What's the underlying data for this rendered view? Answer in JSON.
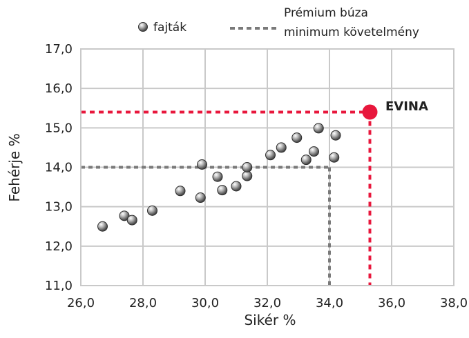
{
  "chart_data": {
    "type": "scatter",
    "xlabel": "Sikér %",
    "ylabel": "Fehérje %",
    "xlim": [
      26,
      38
    ],
    "ylim": [
      11,
      17
    ],
    "x_ticks": [
      "26,0",
      "28,0",
      "30,0",
      "32,0",
      "34,0",
      "36,0",
      "38,0"
    ],
    "y_ticks": [
      "11,0",
      "12,0",
      "13,0",
      "14,0",
      "15,0",
      "16,0",
      "17,0"
    ],
    "grid": true,
    "legend_position": "top",
    "series": [
      {
        "name": "fajták",
        "color": "#6e6e6e",
        "points": [
          [
            26.7,
            12.5
          ],
          [
            27.4,
            12.77
          ],
          [
            27.65,
            12.66
          ],
          [
            28.3,
            12.9
          ],
          [
            29.2,
            13.4
          ],
          [
            29.85,
            13.23
          ],
          [
            29.9,
            14.07
          ],
          [
            30.4,
            13.76
          ],
          [
            30.55,
            13.42
          ],
          [
            31.0,
            13.52
          ],
          [
            31.35,
            13.78
          ],
          [
            31.35,
            14.0
          ],
          [
            32.1,
            14.31
          ],
          [
            32.45,
            14.5
          ],
          [
            32.95,
            14.75
          ],
          [
            33.25,
            14.19
          ],
          [
            33.5,
            14.4
          ],
          [
            33.65,
            14.99
          ],
          [
            34.15,
            14.25
          ],
          [
            34.2,
            14.81
          ]
        ]
      },
      {
        "name": "EVINA",
        "color": "#e8173c",
        "points": [
          [
            35.3,
            15.4
          ]
        ]
      }
    ],
    "reference_lines": [
      {
        "name": "Prémium búza minimum követelmény",
        "color": "#7a7a7a",
        "corner": [
          34.0,
          14.0
        ]
      },
      {
        "name": "EVINA",
        "color": "#e8173c",
        "corner": [
          35.3,
          15.4
        ]
      }
    ],
    "legend": {
      "item1": "fajták",
      "item2_line1": "Prémium búza",
      "item2_line2": "minimum követelmény"
    },
    "annotation": "EVINA"
  }
}
